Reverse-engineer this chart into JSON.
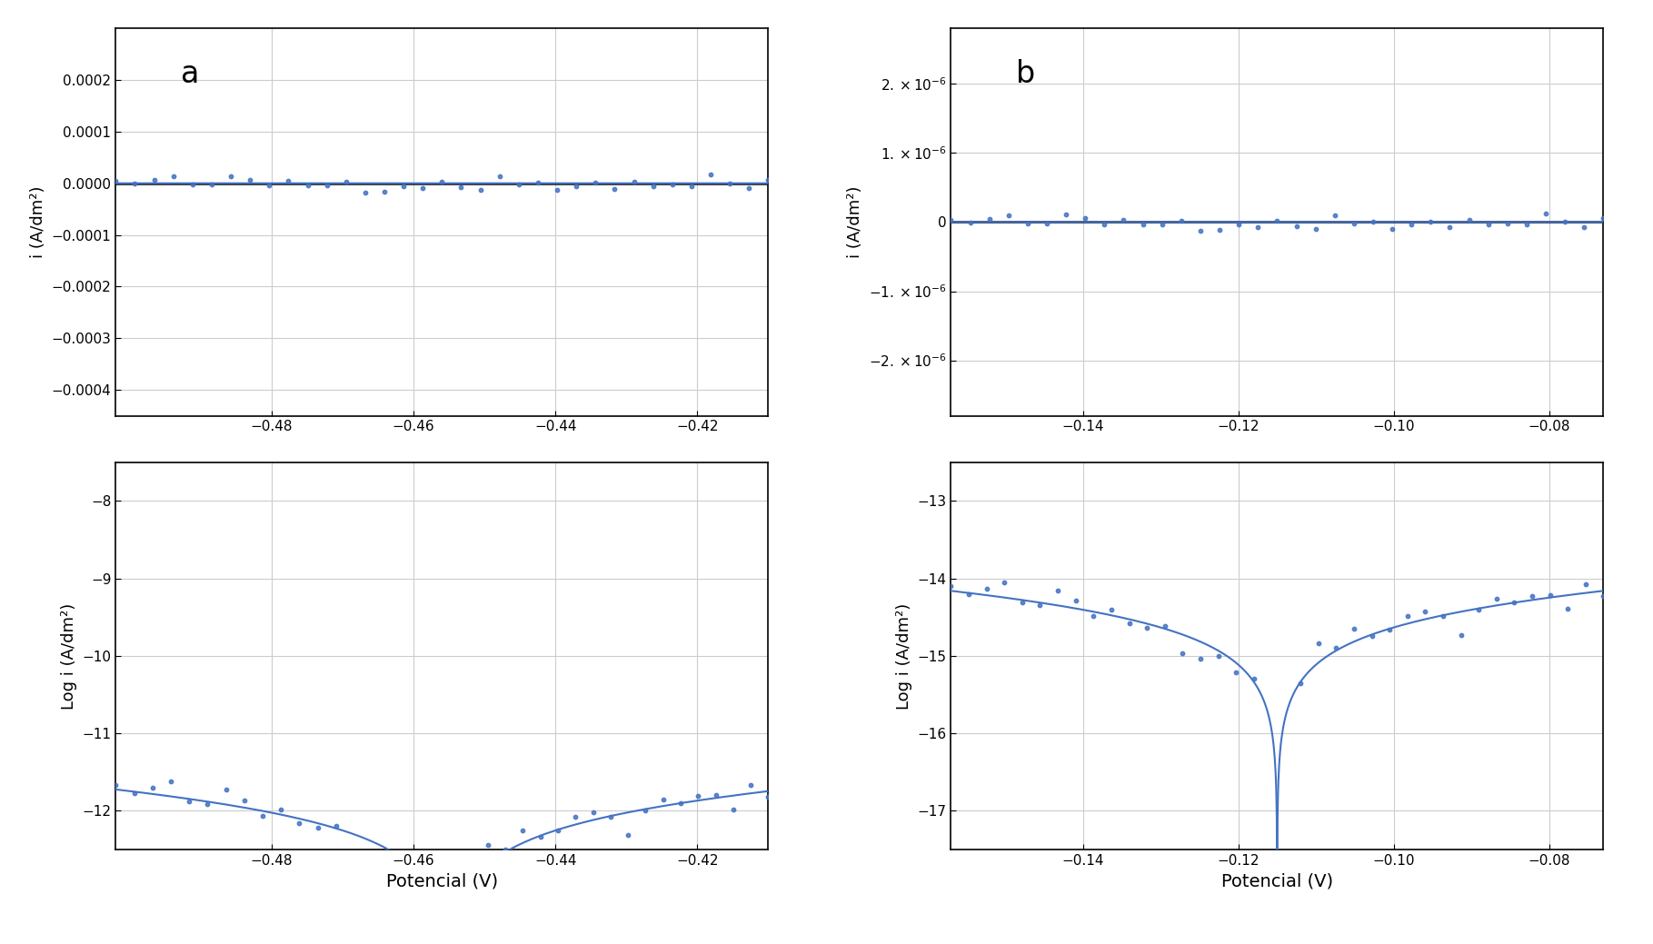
{
  "panel_a": {
    "label": "a",
    "E_corr": -0.455,
    "i0": 1.2e-12,
    "ba": 0.065,
    "bc": 0.065,
    "E_min": -0.502,
    "E_max": -0.41,
    "ylim": [
      -0.00045,
      0.0003
    ],
    "yticks": [
      -0.0004,
      -0.0003,
      -0.0002,
      -0.0001,
      0.0,
      0.0001,
      0.0002
    ],
    "xticks": [
      -0.48,
      -0.46,
      -0.44,
      -0.42
    ],
    "ylabel": "i (A/dm²)"
  },
  "panel_b": {
    "label": "b",
    "E_corr": -0.115,
    "i0": 5e-15,
    "ba": 0.065,
    "bc": 0.065,
    "E_min": -0.157,
    "E_max": -0.073,
    "ylim": [
      -2.8e-06,
      2.8e-06
    ],
    "yticks": [
      -2e-06,
      -1e-06,
      0,
      1e-06,
      2e-06
    ],
    "xticks": [
      -0.14,
      -0.12,
      -0.1,
      -0.08
    ],
    "ylabel": "i (A/dm²)"
  },
  "panel_c": {
    "label": "",
    "E_corr": -0.455,
    "i0": 1.2e-12,
    "ba": 0.065,
    "bc": 0.065,
    "E_min": -0.502,
    "E_max": -0.41,
    "ylim": [
      -12.5,
      -7.5
    ],
    "yticks": [
      -12,
      -11,
      -10,
      -9,
      -8
    ],
    "xticks": [
      -0.48,
      -0.46,
      -0.44,
      -0.42
    ],
    "ylabel": "Log i (A/dm²)",
    "xlabel": "Potencial (V)"
  },
  "panel_d": {
    "label": "",
    "E_corr": -0.115,
    "i0": 5e-15,
    "ba": 0.065,
    "bc": 0.065,
    "E_min": -0.157,
    "E_max": -0.073,
    "ylim": [
      -17.5,
      -12.5
    ],
    "yticks": [
      -17,
      -16,
      -15,
      -14,
      -13
    ],
    "xticks": [
      -0.14,
      -0.12,
      -0.1,
      -0.08
    ],
    "ylabel": "Log i (A/dm²)",
    "xlabel": "Potencial (V)"
  },
  "line_color": "#4472C4",
  "dot_color": "#4472C4",
  "background_color": "#ffffff",
  "grid_color": "#cccccc"
}
